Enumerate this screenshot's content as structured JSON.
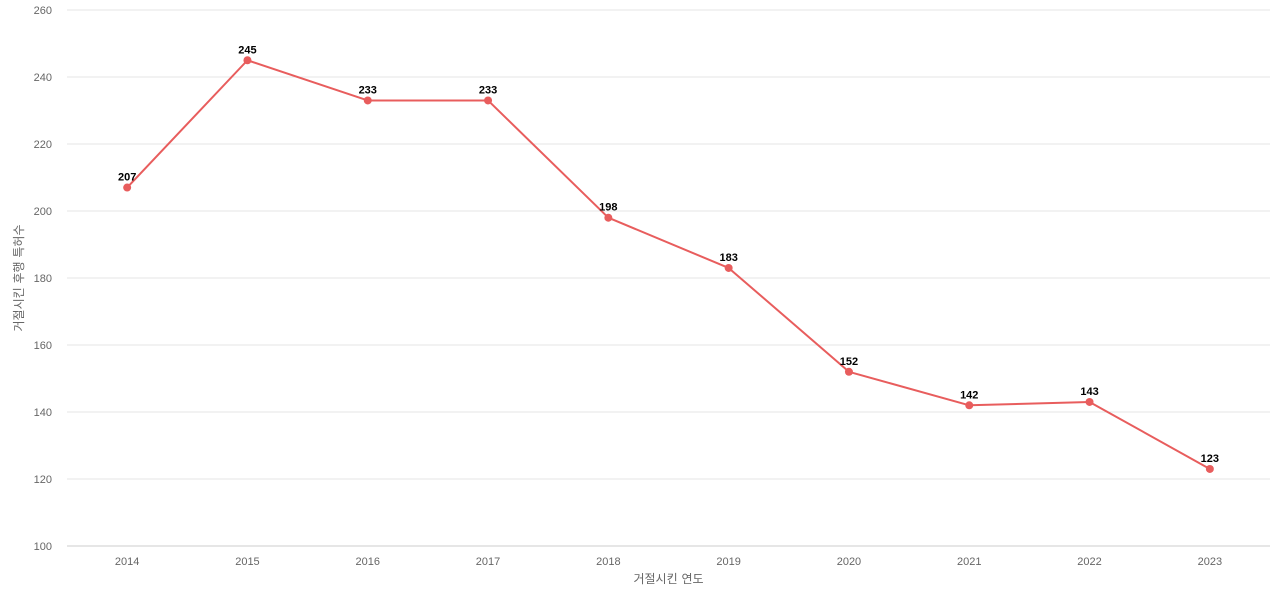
{
  "chart_data": {
    "type": "line",
    "title": "",
    "xlabel": "거절시킨 연도",
    "ylabel": "거절시킨 후행 특허수",
    "categories": [
      "2014",
      "2015",
      "2016",
      "2017",
      "2018",
      "2019",
      "2020",
      "2021",
      "2022",
      "2023"
    ],
    "series": [
      {
        "values": [
          207,
          245,
          233,
          233,
          198,
          183,
          152,
          142,
          143,
          123
        ]
      }
    ],
    "ylim": [
      100,
      260
    ],
    "yticks": [
      100,
      120,
      140,
      160,
      180,
      200,
      220,
      240,
      260
    ],
    "grid": true,
    "data_labels": true,
    "colors": {
      "line": "#e85d5d",
      "grid": "#e6e6e6"
    }
  }
}
